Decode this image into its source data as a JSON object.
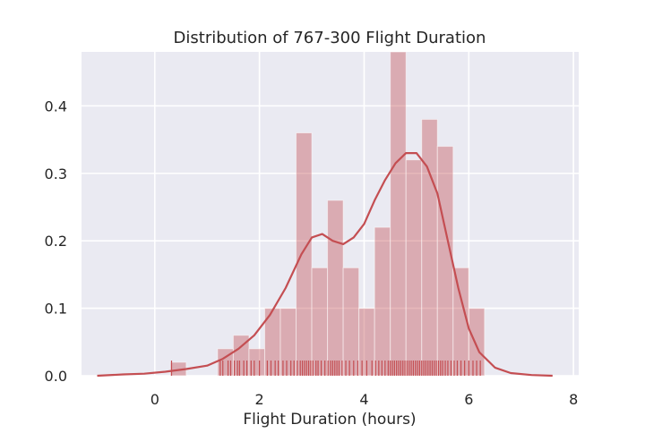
{
  "chart_data": {
    "type": "histogram",
    "title": "Distribution of 767-300 Flight Duration",
    "xlabel": "Flight Duration (hours)",
    "ylabel": "",
    "xlim": [
      -1.4,
      8.1
    ],
    "ylim": [
      0,
      0.48
    ],
    "x_ticks": [
      "0",
      "2",
      "4",
      "6",
      "8"
    ],
    "y_ticks": [
      "0.0",
      "0.1",
      "0.2",
      "0.3",
      "0.4"
    ],
    "grid": true,
    "bins": [
      {
        "x0": 0.3,
        "x1": 0.6,
        "density": 0.02
      },
      {
        "x0": 1.2,
        "x1": 1.5,
        "density": 0.04
      },
      {
        "x0": 1.5,
        "x1": 1.8,
        "density": 0.06
      },
      {
        "x0": 1.8,
        "x1": 2.1,
        "density": 0.04
      },
      {
        "x0": 2.1,
        "x1": 2.4,
        "density": 0.1
      },
      {
        "x0": 2.4,
        "x1": 2.7,
        "density": 0.1
      },
      {
        "x0": 2.7,
        "x1": 3.0,
        "density": 0.36
      },
      {
        "x0": 3.0,
        "x1": 3.3,
        "density": 0.16
      },
      {
        "x0": 3.3,
        "x1": 3.6,
        "density": 0.26
      },
      {
        "x0": 3.6,
        "x1": 3.9,
        "density": 0.16
      },
      {
        "x0": 3.9,
        "x1": 4.2,
        "density": 0.1
      },
      {
        "x0": 4.2,
        "x1": 4.5,
        "density": 0.22
      },
      {
        "x0": 4.5,
        "x1": 4.8,
        "density": 0.48
      },
      {
        "x0": 4.8,
        "x1": 5.1,
        "density": 0.32
      },
      {
        "x0": 5.1,
        "x1": 5.4,
        "density": 0.38
      },
      {
        "x0": 5.4,
        "x1": 5.7,
        "density": 0.34
      },
      {
        "x0": 5.7,
        "x1": 6.0,
        "density": 0.16
      },
      {
        "x0": 6.0,
        "x1": 6.3,
        "density": 0.1
      }
    ],
    "kde": {
      "x": [
        -1.1,
        -0.6,
        -0.2,
        0.2,
        0.6,
        1.0,
        1.3,
        1.6,
        1.9,
        2.2,
        2.5,
        2.8,
        3.0,
        3.2,
        3.4,
        3.6,
        3.8,
        4.0,
        4.2,
        4.4,
        4.6,
        4.8,
        5.0,
        5.2,
        5.4,
        5.6,
        5.8,
        6.0,
        6.2,
        6.5,
        6.8,
        7.2,
        7.6
      ],
      "y": [
        0.0,
        0.002,
        0.003,
        0.006,
        0.01,
        0.015,
        0.025,
        0.04,
        0.06,
        0.09,
        0.13,
        0.18,
        0.205,
        0.21,
        0.2,
        0.195,
        0.205,
        0.225,
        0.26,
        0.29,
        0.315,
        0.33,
        0.33,
        0.31,
        0.27,
        0.2,
        0.13,
        0.07,
        0.035,
        0.012,
        0.004,
        0.001,
        0.0
      ]
    },
    "rug": [
      0.32,
      1.25,
      1.3,
      1.4,
      1.45,
      1.52,
      1.58,
      1.62,
      1.7,
      1.76,
      1.84,
      1.9,
      2.0,
      2.15,
      2.22,
      2.3,
      2.36,
      2.45,
      2.52,
      2.6,
      2.66,
      2.72,
      2.78,
      2.82,
      2.86,
      2.9,
      2.94,
      2.98,
      3.02,
      3.08,
      3.12,
      3.18,
      3.25,
      3.31,
      3.36,
      3.4,
      3.44,
      3.48,
      3.52,
      3.58,
      3.65,
      3.72,
      3.8,
      3.88,
      3.96,
      4.05,
      4.15,
      4.22,
      4.28,
      4.34,
      4.4,
      4.46,
      4.5,
      4.54,
      4.58,
      4.62,
      4.66,
      4.7,
      4.74,
      4.78,
      4.82,
      4.86,
      4.9,
      4.94,
      4.98,
      5.02,
      5.06,
      5.1,
      5.14,
      5.18,
      5.22,
      5.26,
      5.3,
      5.34,
      5.38,
      5.42,
      5.46,
      5.5,
      5.55,
      5.6,
      5.66,
      5.72,
      5.78,
      5.85,
      5.92,
      6.0,
      6.08,
      6.15,
      6.22
    ],
    "colors": {
      "background": "#eaeaf2",
      "grid": "#ffffff",
      "bar_fill": "#c44e52",
      "line": "#c44e52",
      "text": "#262626"
    }
  }
}
